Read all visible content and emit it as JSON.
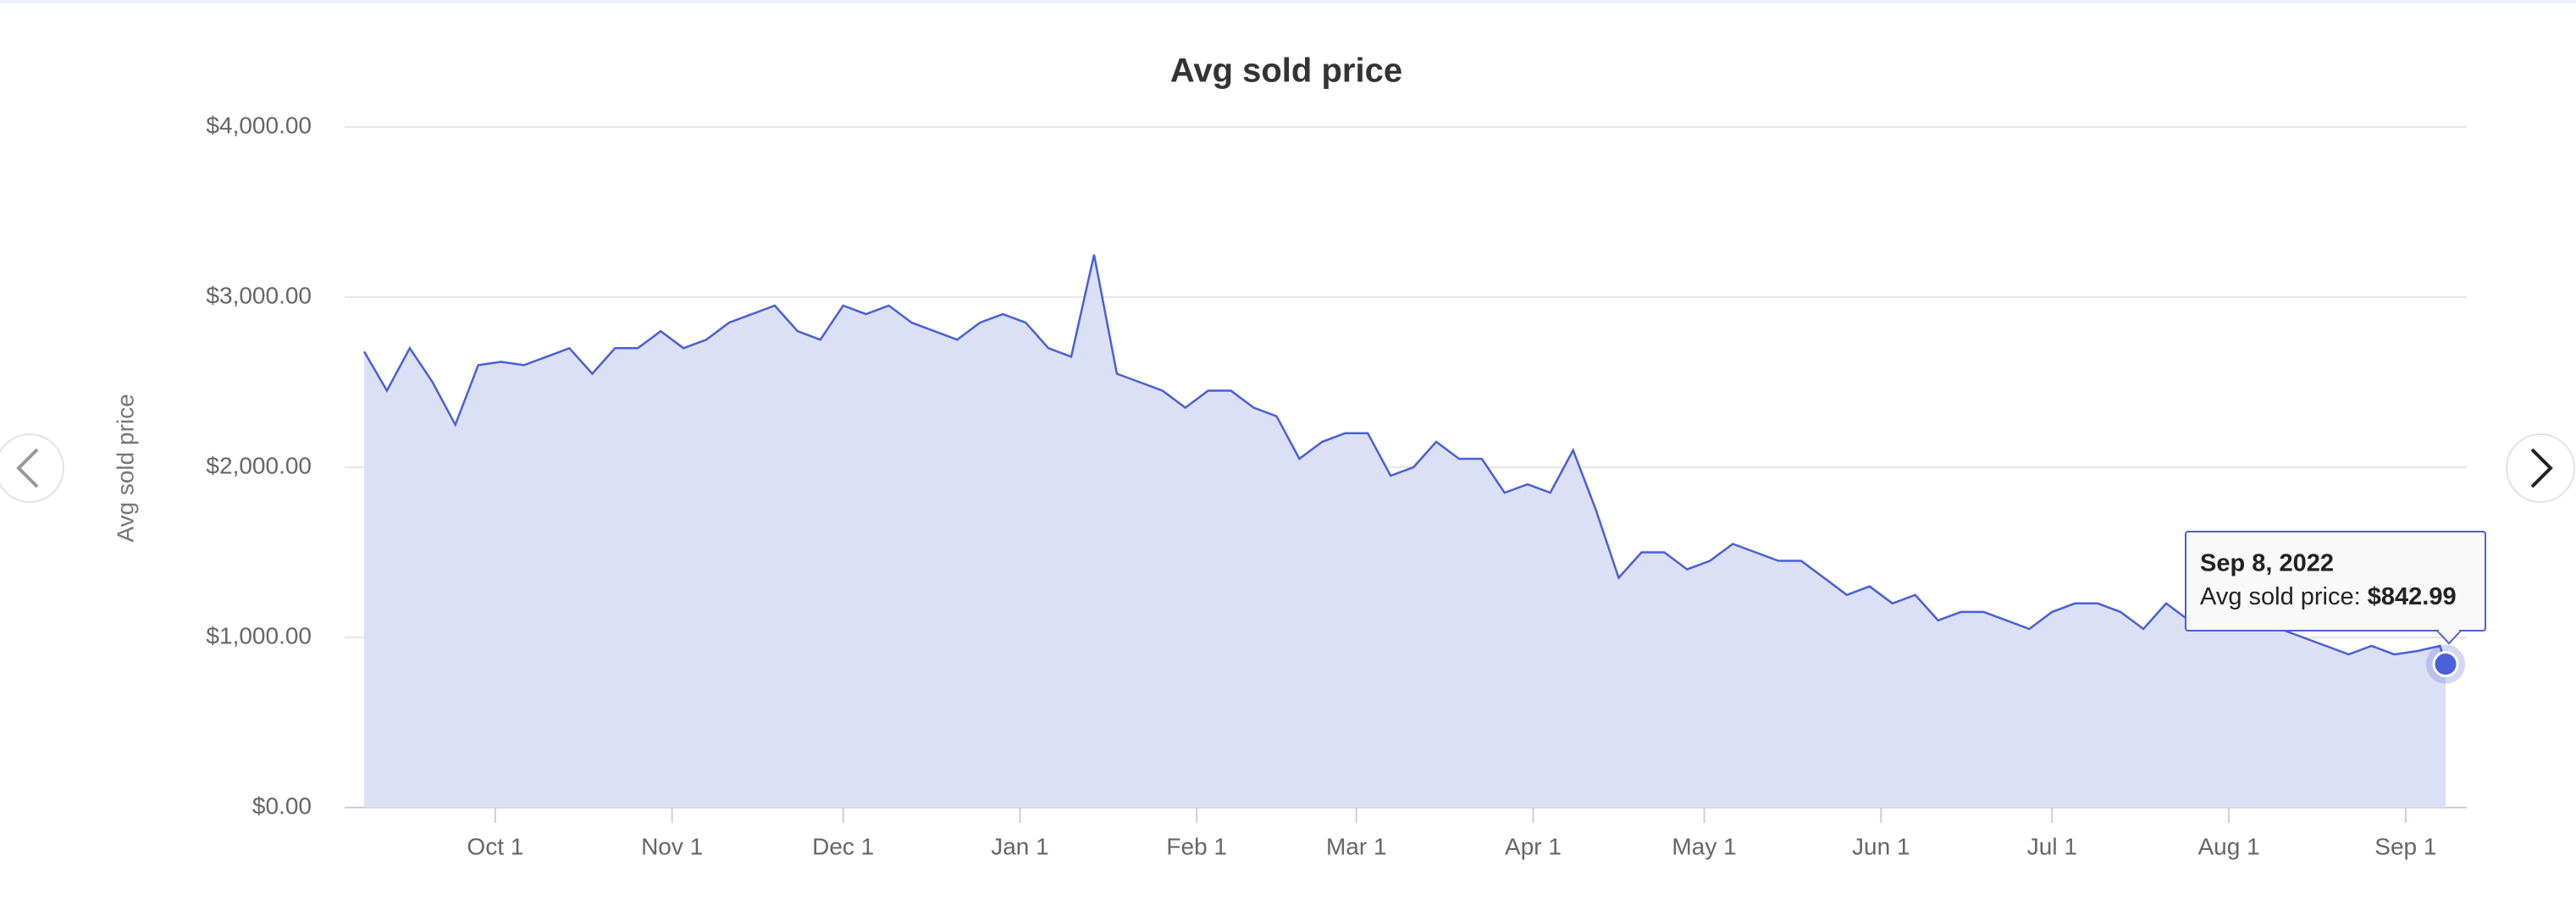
{
  "chart_data": {
    "type": "area",
    "title": "Avg sold price",
    "y_label": "Avg sold price",
    "x": [
      "2021-09-08",
      "2021-09-12",
      "2021-09-16",
      "2021-09-20",
      "2021-09-24",
      "2021-09-28",
      "2021-10-02",
      "2021-10-06",
      "2021-10-10",
      "2021-10-14",
      "2021-10-18",
      "2021-10-22",
      "2021-10-26",
      "2021-10-30",
      "2021-11-03",
      "2021-11-07",
      "2021-11-11",
      "2021-11-15",
      "2021-11-19",
      "2021-11-23",
      "2021-11-27",
      "2021-12-01",
      "2021-12-05",
      "2021-12-09",
      "2021-12-13",
      "2021-12-17",
      "2021-12-21",
      "2021-12-25",
      "2021-12-29",
      "2022-01-02",
      "2022-01-06",
      "2022-01-10",
      "2022-01-14",
      "2022-01-18",
      "2022-01-22",
      "2022-01-26",
      "2022-01-30",
      "2022-02-03",
      "2022-02-07",
      "2022-02-11",
      "2022-02-15",
      "2022-02-19",
      "2022-02-23",
      "2022-02-27",
      "2022-03-03",
      "2022-03-07",
      "2022-03-11",
      "2022-03-15",
      "2022-03-19",
      "2022-03-23",
      "2022-03-27",
      "2022-03-31",
      "2022-04-04",
      "2022-04-08",
      "2022-04-12",
      "2022-04-16",
      "2022-04-20",
      "2022-04-24",
      "2022-04-28",
      "2022-05-02",
      "2022-05-06",
      "2022-05-10",
      "2022-05-14",
      "2022-05-18",
      "2022-05-22",
      "2022-05-26",
      "2022-05-30",
      "2022-06-03",
      "2022-06-07",
      "2022-06-11",
      "2022-06-15",
      "2022-06-19",
      "2022-06-23",
      "2022-06-27",
      "2022-07-01",
      "2022-07-05",
      "2022-07-09",
      "2022-07-13",
      "2022-07-17",
      "2022-07-21",
      "2022-07-25",
      "2022-07-29",
      "2022-08-02",
      "2022-08-06",
      "2022-08-10",
      "2022-08-14",
      "2022-08-18",
      "2022-08-22",
      "2022-08-26",
      "2022-08-30",
      "2022-09-03",
      "2022-09-07",
      "2022-09-08"
    ],
    "series": [
      {
        "name": "Avg sold price",
        "color": "#4a5fd8",
        "fill": "#dce0f7",
        "values": [
          2680,
          2450,
          2700,
          2500,
          2250,
          2600,
          2620,
          2600,
          2650,
          2700,
          2550,
          2700,
          2700,
          2800,
          2700,
          2750,
          2850,
          2900,
          2950,
          2800,
          2750,
          2950,
          2900,
          2950,
          2850,
          2800,
          2750,
          2850,
          2900,
          2850,
          2700,
          2650,
          3250,
          2550,
          2500,
          2450,
          2350,
          2450,
          2450,
          2350,
          2300,
          2050,
          2150,
          2200,
          2200,
          1950,
          2000,
          2150,
          2050,
          2050,
          1850,
          1900,
          1850,
          2100,
          1750,
          1350,
          1500,
          1500,
          1400,
          1450,
          1550,
          1500,
          1450,
          1450,
          1350,
          1250,
          1300,
          1200,
          1250,
          1100,
          1150,
          1150,
          1100,
          1050,
          1150,
          1200,
          1200,
          1150,
          1050,
          1200,
          1100,
          1050,
          1100,
          1050,
          1050,
          1000,
          950,
          900,
          950,
          900,
          920,
          950,
          842.99
        ]
      }
    ],
    "xlim": [
      "2021-09-08",
      "2022-09-08"
    ],
    "xticks": [
      {
        "value": "2021-10-01",
        "label": "Oct 1"
      },
      {
        "value": "2021-11-01",
        "label": "Nov 1"
      },
      {
        "value": "2021-12-01",
        "label": "Dec 1"
      },
      {
        "value": "2022-01-01",
        "label": "Jan 1"
      },
      {
        "value": "2022-02-01",
        "label": "Feb 1"
      },
      {
        "value": "2022-03-01",
        "label": "Mar 1"
      },
      {
        "value": "2022-04-01",
        "label": "Apr 1"
      },
      {
        "value": "2022-05-01",
        "label": "May 1"
      },
      {
        "value": "2022-06-01",
        "label": "Jun 1"
      },
      {
        "value": "2022-07-01",
        "label": "Jul 1"
      },
      {
        "value": "2022-08-01",
        "label": "Aug 1"
      },
      {
        "value": "2022-09-01",
        "label": "Sep 1"
      }
    ],
    "ylim": [
      0,
      4000
    ],
    "yticks": [
      {
        "value": 0,
        "label": "$0.00"
      },
      {
        "value": 1000,
        "label": "$1,000.00"
      },
      {
        "value": 2000,
        "label": "$2,000.00"
      },
      {
        "value": 3000,
        "label": "$3,000.00"
      },
      {
        "value": 4000,
        "label": "$4,000.00"
      }
    ],
    "grid": true,
    "tooltip": {
      "title": "Sep 8, 2022",
      "series_label": "Avg sold price:",
      "value": "$842.99"
    }
  }
}
